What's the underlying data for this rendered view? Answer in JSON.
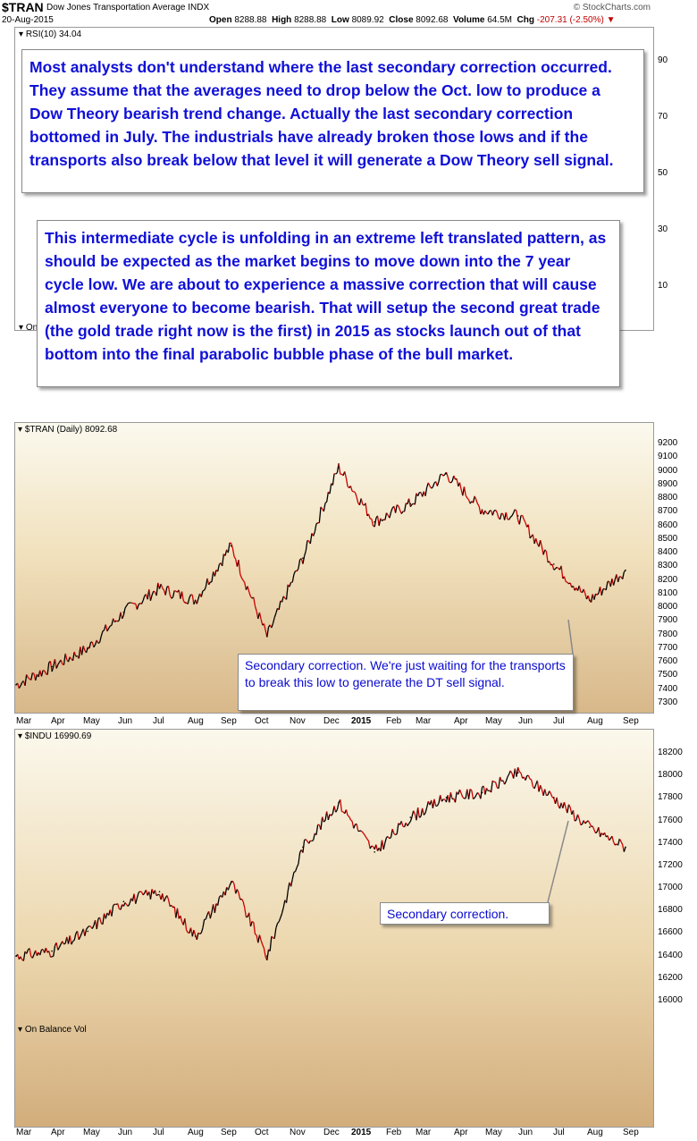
{
  "header": {
    "symbol": "$TRAN",
    "name": "Dow Jones Transportation Average",
    "exchange": "INDX",
    "source": "© StockCharts.com",
    "date": "20-Aug-2015",
    "open_label": "Open",
    "open": "8288.88",
    "high_label": "High",
    "high": "8288.88",
    "low_label": "Low",
    "low": "8089.92",
    "close_label": "Close",
    "close": "8092.68",
    "volume_label": "Volume",
    "volume": "64.5M",
    "chg_label": "Chg",
    "chg": "-207.31 (-2.50%)"
  },
  "annotations": {
    "note1": "Most analysts don't understand where the last secondary correction occurred. They assume that the averages need to drop below the Oct. low to produce a Dow Theory bearish trend change. Actually the last secondary correction bottomed in July. The industrials have already broken those lows and if the transports also break below that level it will generate a Dow Theory sell signal.",
    "note2": "This intermediate cycle is unfolding in an extreme left translated pattern, as should be expected as the market begins to move down into the 7 year cycle low. We are about to experience a massive correction that will cause almost everyone to become bearish. That will setup the second great trade (the gold trade right now is the first) in 2015 as stocks launch out of that bottom into the final parabolic bubble phase of the bull market.",
    "note3": "Secondary correction. We're just waiting for the transports to break this low to generate the DT sell signal.",
    "note4": "Secondary correction."
  },
  "rsi_panel": {
    "label": "RSI(10) 34.04",
    "ticks": [
      "90",
      "70",
      "50",
      "30",
      "10"
    ],
    "obv_partial_label": "On"
  },
  "obv_panel": {
    "label": "On Balance Vol"
  },
  "x_months": [
    "Mar",
    "Apr",
    "May",
    "Jun",
    "Jul",
    "Aug",
    "Sep",
    "Oct",
    "Nov",
    "Dec",
    "2015",
    "Feb",
    "Mar",
    "Apr",
    "May",
    "Jun",
    "Jul",
    "Aug",
    "Sep"
  ],
  "colors": {
    "up": "#000000",
    "down": "#cc0000",
    "note_text": "#1010d8"
  },
  "chart_data": [
    {
      "type": "line",
      "title": "$TRAN (Daily) 8092.68",
      "x": [
        "Mar",
        "Apr",
        "May",
        "Jun",
        "Jul",
        "Aug",
        "Sep",
        "Oct",
        "Nov",
        "Dec",
        "2015",
        "Feb",
        "Mar",
        "Apr",
        "May",
        "Jun",
        "Jul",
        "Aug"
      ],
      "series": [
        {
          "values": [
            7350,
            7500,
            7650,
            7950,
            8150,
            8050,
            8500,
            7750,
            8400,
            9150,
            8700,
            8850,
            9100,
            8800,
            8750,
            8350,
            8050,
            8300
          ]
        }
      ],
      "ylim": [
        7200,
        9350
      ],
      "yticks": [
        "9200",
        "9100",
        "9000",
        "8900",
        "8800",
        "8700",
        "8600",
        "8500",
        "8400",
        "8300",
        "8200",
        "8100",
        "8000",
        "7900",
        "7800",
        "7700",
        "7600",
        "7500",
        "7400",
        "7300"
      ],
      "grid": false
    },
    {
      "type": "line",
      "title": "$INDU 16990.69",
      "x": [
        "Mar",
        "Apr",
        "May",
        "Jun",
        "Jul",
        "Aug",
        "Sep",
        "Oct",
        "Nov",
        "Dec",
        "2015",
        "Feb",
        "Mar",
        "Apr",
        "May",
        "Jun",
        "Jul",
        "Aug"
      ],
      "series": [
        {
          "values": [
            16300,
            16350,
            16550,
            16850,
            16950,
            16500,
            17050,
            16300,
            17400,
            17850,
            17350,
            17700,
            17900,
            17950,
            18150,
            17900,
            17600,
            17400
          ]
        }
      ],
      "ylim": [
        15850,
        18350
      ],
      "yticks": [
        "18200",
        "18000",
        "17800",
        "17600",
        "17400",
        "17200",
        "17000",
        "16800",
        "16600",
        "16400",
        "16200",
        "16000"
      ],
      "grid": false
    }
  ]
}
